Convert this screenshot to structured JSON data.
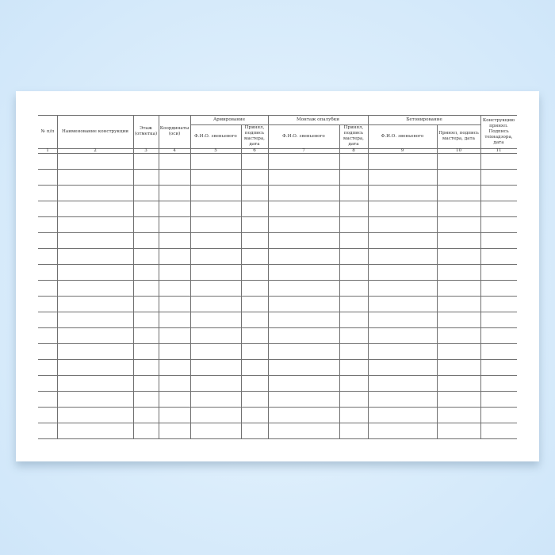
{
  "header": {
    "num": "№ п/п",
    "name": "Наименование конструкции",
    "floor": "Этаж (отметка)",
    "coords": "Координаты (оси)",
    "groups": {
      "reinforcement": "Армирование",
      "formwork": "Монтаж опалубки",
      "concreting": "Бетонирование"
    },
    "accepted_tech": "Конструкцию принял. Подпись технадзора, дата",
    "fio_1": "Ф.И.О. звеньевого",
    "sign_1": "Принял, подпись мастера, дата",
    "fio_2": "Ф.И.О. звеньевого",
    "sign_2": "Принял, подпись мастера, дата",
    "fio_3": "Ф.И.О. звеньевого",
    "sign_3": "Принял, подпись мастера, дата"
  },
  "column_numbers": [
    "1",
    "2",
    "3",
    "4",
    "5",
    "6",
    "7",
    "8",
    "9",
    "10",
    "11"
  ],
  "empty_rows": 18
}
